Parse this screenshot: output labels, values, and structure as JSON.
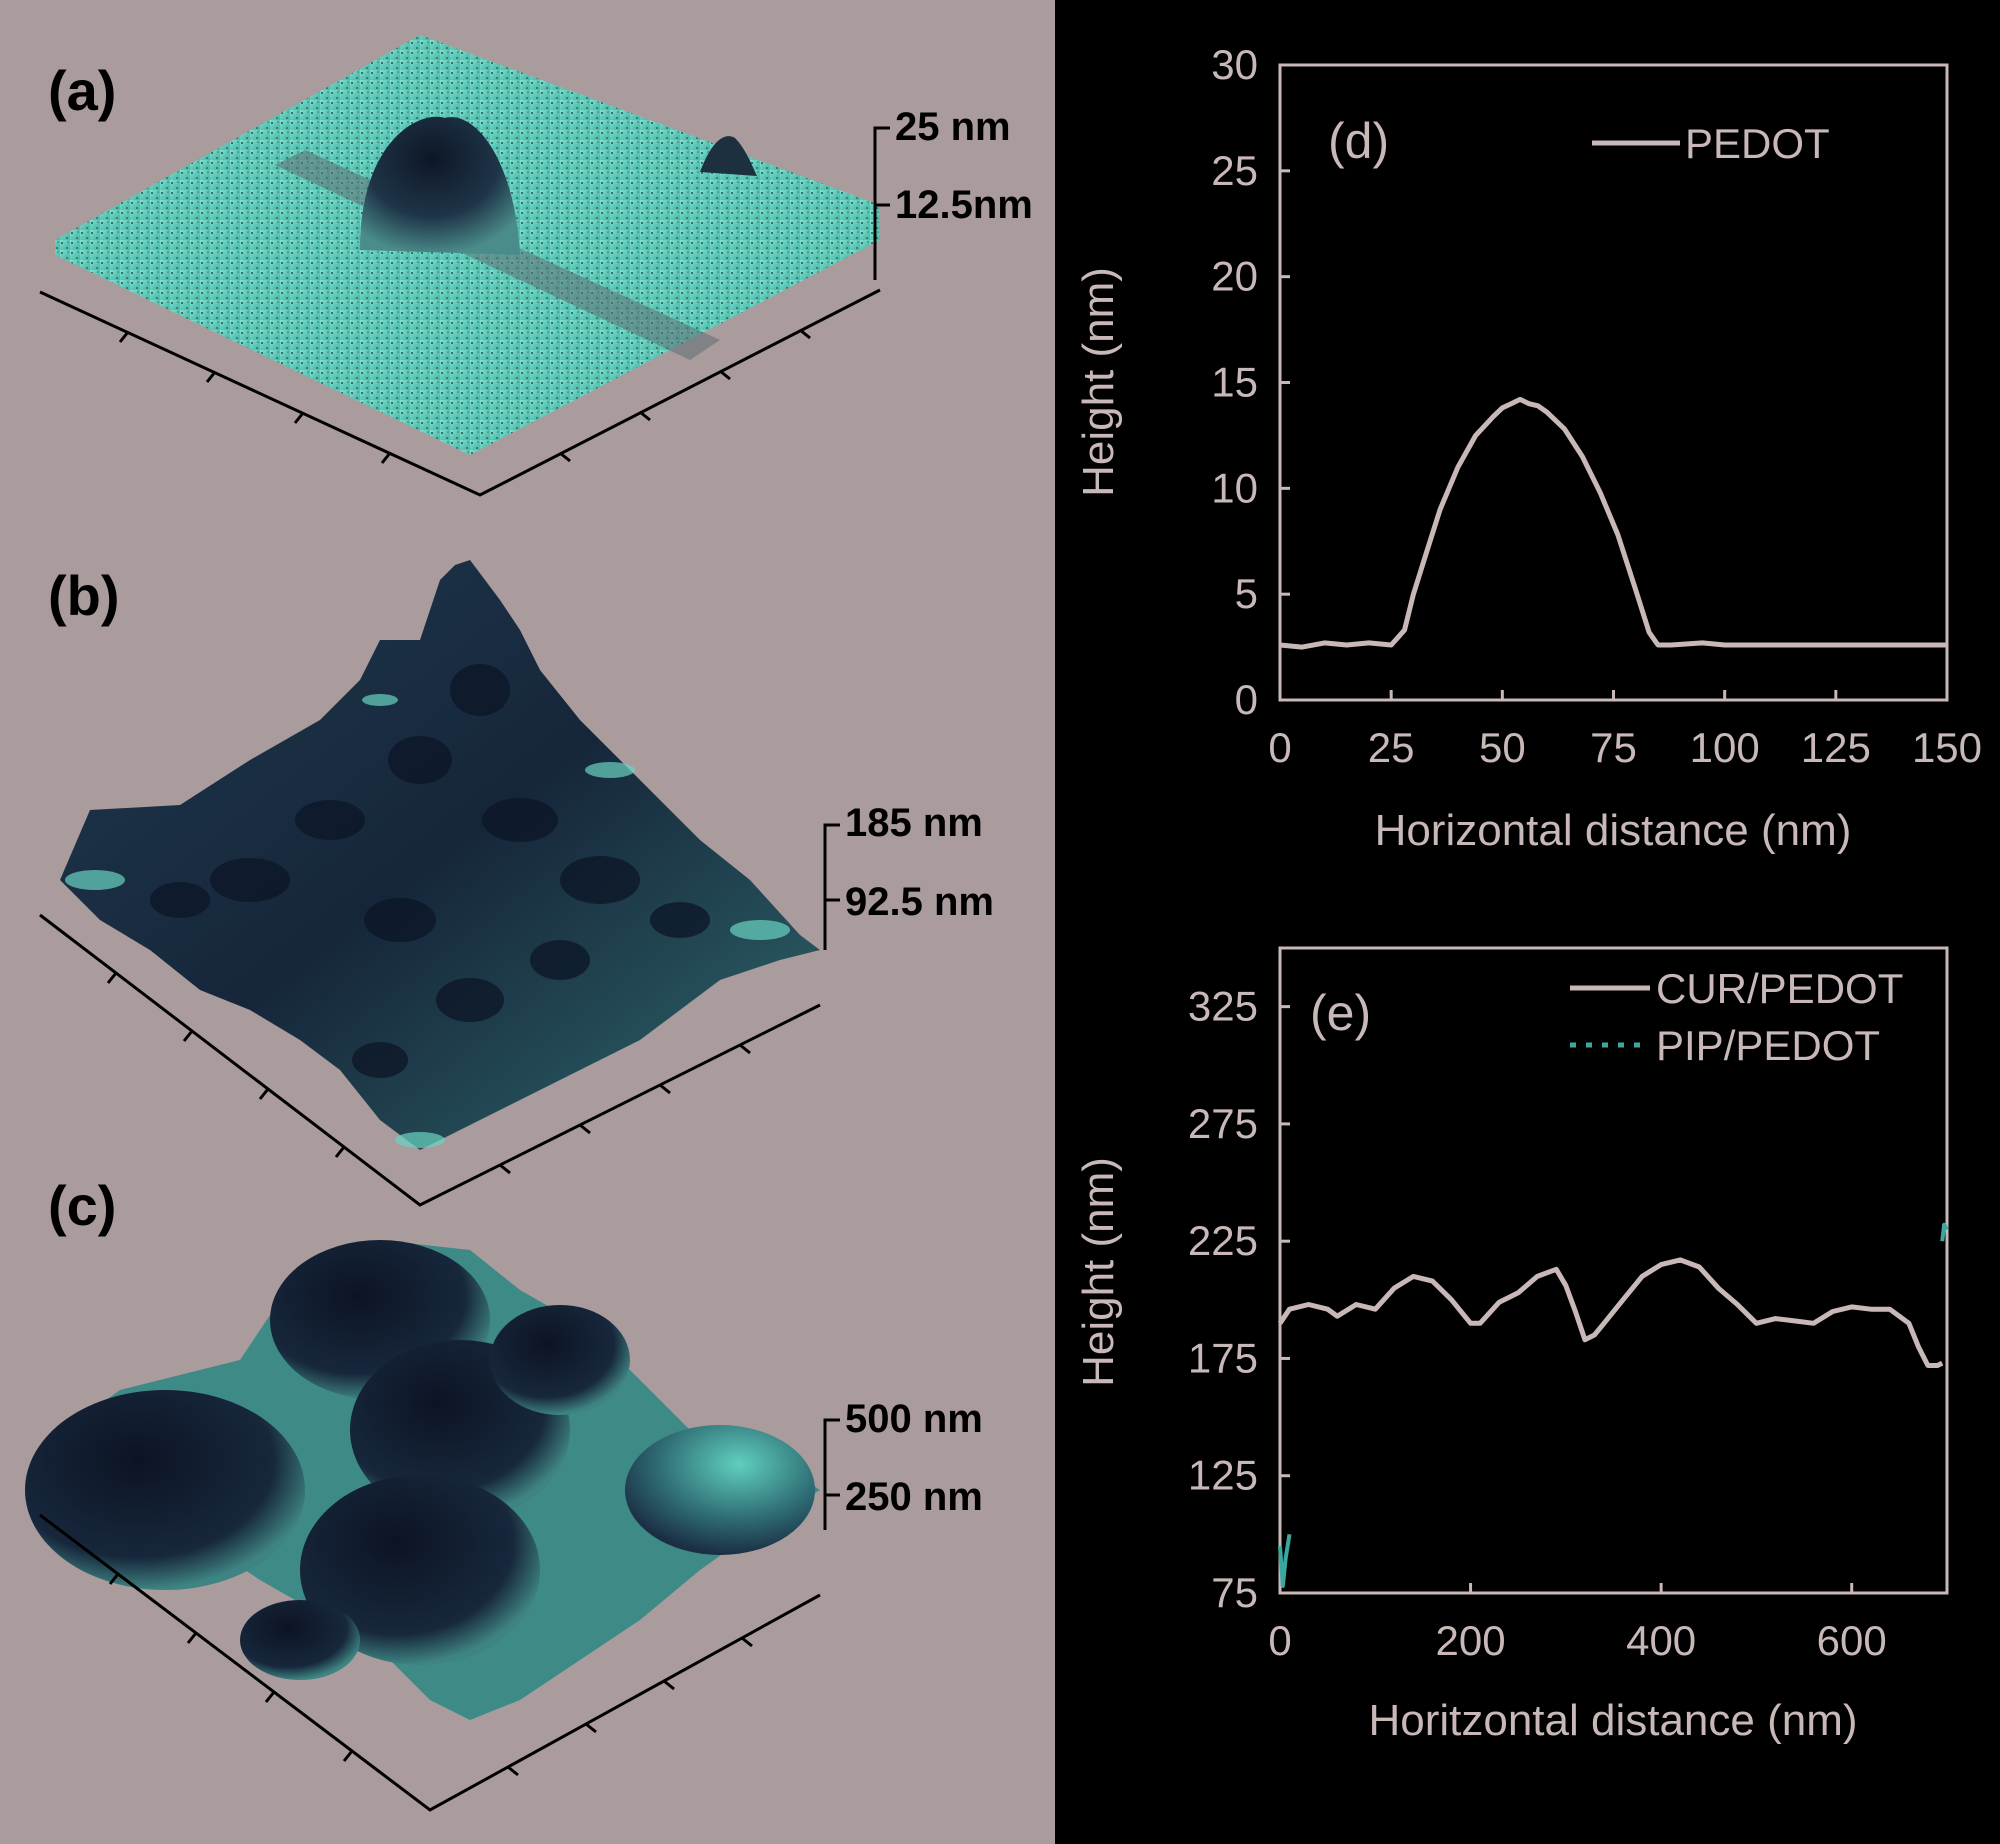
{
  "colors": {
    "background": "#000000",
    "left_panel": "#aa9b9c",
    "surface_teal": "#6cd6c4",
    "surface_dark": "#1a2a3e",
    "axis": "#c8b8b8"
  },
  "panels": {
    "a": {
      "label": "(a)",
      "z_top": "25 nm",
      "z_mid": "12.5nm"
    },
    "b": {
      "label": "(b)",
      "z_top": "185 nm",
      "z_mid": "92.5 nm"
    },
    "c": {
      "label": "(c)",
      "z_top": "500 nm",
      "z_mid": "250 nm"
    }
  },
  "chart_data": [
    {
      "id": "d",
      "type": "line",
      "panel_label": "(d)",
      "xlabel": "Horizontal distance (nm)",
      "ylabel": "Height (nm)",
      "xlim": [
        0,
        150
      ],
      "ylim": [
        0,
        30
      ],
      "xticks": [
        0,
        25,
        50,
        75,
        100,
        125,
        150
      ],
      "yticks": [
        0,
        5,
        10,
        15,
        20,
        25,
        30
      ],
      "legend_position": "top-right",
      "series": [
        {
          "name": "PEDOT",
          "x": [
            0,
            5,
            10,
            15,
            20,
            25,
            28,
            30,
            33,
            36,
            40,
            44,
            48,
            50,
            52,
            54,
            56,
            58,
            60,
            64,
            68,
            72,
            76,
            80,
            83,
            85,
            88,
            95,
            100,
            110,
            120,
            130,
            140,
            150
          ],
          "y": [
            2.6,
            2.5,
            2.7,
            2.6,
            2.7,
            2.6,
            3.3,
            5.0,
            7.0,
            9.0,
            11.0,
            12.5,
            13.4,
            13.8,
            14.0,
            14.2,
            14.0,
            13.9,
            13.6,
            12.8,
            11.5,
            9.8,
            7.8,
            5.2,
            3.2,
            2.6,
            2.6,
            2.7,
            2.6,
            2.6,
            2.6,
            2.6,
            2.6,
            2.6
          ]
        }
      ]
    },
    {
      "id": "e",
      "type": "line",
      "panel_label": "(e)",
      "xlabel": "Horitzontal distance (nm)",
      "ylabel": "Height (nm)",
      "xlim": [
        0,
        700
      ],
      "ylim": [
        75,
        350
      ],
      "xticks": [
        0,
        200,
        400,
        600
      ],
      "yticks": [
        75,
        125,
        175,
        225,
        275,
        325
      ],
      "legend_position": "top-right",
      "series": [
        {
          "name": "CUR/PEDOT",
          "x": [
            0,
            10,
            30,
            50,
            60,
            80,
            100,
            120,
            140,
            160,
            180,
            200,
            210,
            230,
            250,
            270,
            290,
            300,
            310,
            320,
            330,
            340,
            360,
            380,
            400,
            420,
            440,
            460,
            480,
            500,
            520,
            540,
            560,
            580,
            600,
            620,
            640,
            660,
            670,
            680,
            690,
            695
          ],
          "y": [
            190,
            196,
            198,
            196,
            193,
            198,
            196,
            205,
            210,
            208,
            200,
            190,
            190,
            199,
            203,
            210,
            213,
            206,
            195,
            183,
            185,
            190,
            200,
            210,
            215,
            217,
            214,
            205,
            198,
            190,
            192,
            191,
            190,
            195,
            197,
            196,
            196,
            190,
            180,
            172,
            172,
            173
          ]
        },
        {
          "name": "PIP/PEDOT",
          "x": [
            0,
            3,
            6,
            10,
            695,
            697,
            700
          ],
          "y": [
            95,
            78,
            90,
            100,
            225,
            232,
            230
          ]
        }
      ]
    }
  ]
}
